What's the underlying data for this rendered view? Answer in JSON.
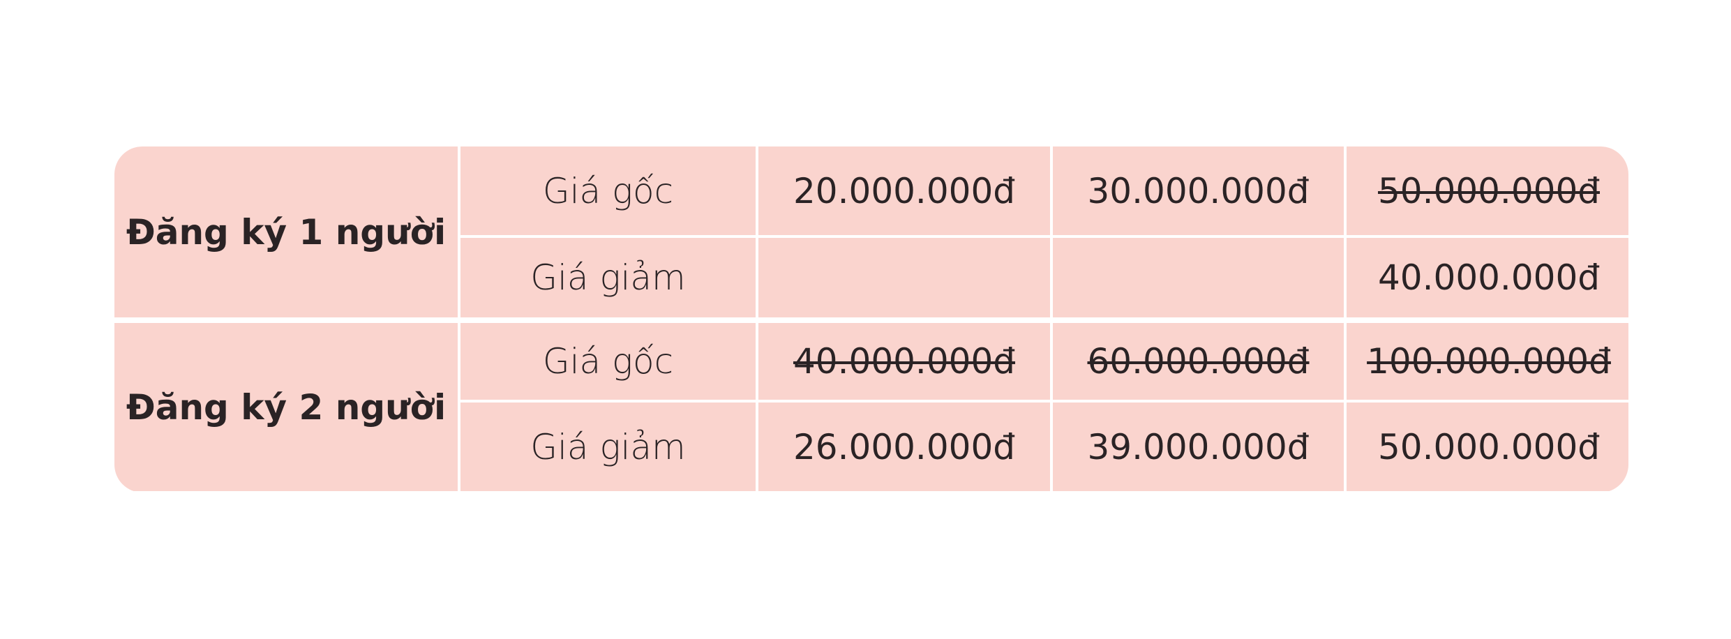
{
  "table": {
    "groups": [
      {
        "label": "Đăng ký 1 người",
        "rows": [
          {
            "row_label": "Giá gốc",
            "cells": [
              {
                "text": "20.000.000đ",
                "strike": false
              },
              {
                "text": "30.000.000đ",
                "strike": false
              },
              {
                "text": "50.000.000đ",
                "strike": true
              }
            ]
          },
          {
            "row_label": "Giá giảm",
            "cells": [
              {
                "text": "",
                "strike": false
              },
              {
                "text": "",
                "strike": false
              },
              {
                "text": "40.000.000đ",
                "strike": false
              }
            ]
          }
        ]
      },
      {
        "label": "Đăng ký 2 người",
        "rows": [
          {
            "row_label": "Giá gốc",
            "cells": [
              {
                "text": "40.000.000đ",
                "strike": true
              },
              {
                "text": "60.000.000đ",
                "strike": true
              },
              {
                "text": "100.000.000đ",
                "strike": true
              }
            ]
          },
          {
            "row_label": "Giá giảm",
            "cells": [
              {
                "text": "26.000.000đ",
                "strike": false
              },
              {
                "text": "39.000.000đ",
                "strike": false
              },
              {
                "text": "50.000.000đ",
                "strike": false
              }
            ]
          }
        ]
      }
    ],
    "colors": {
      "cell_background": "#fad4ce",
      "grid_lines": "#ffffff",
      "text": "#2a2325"
    }
  }
}
